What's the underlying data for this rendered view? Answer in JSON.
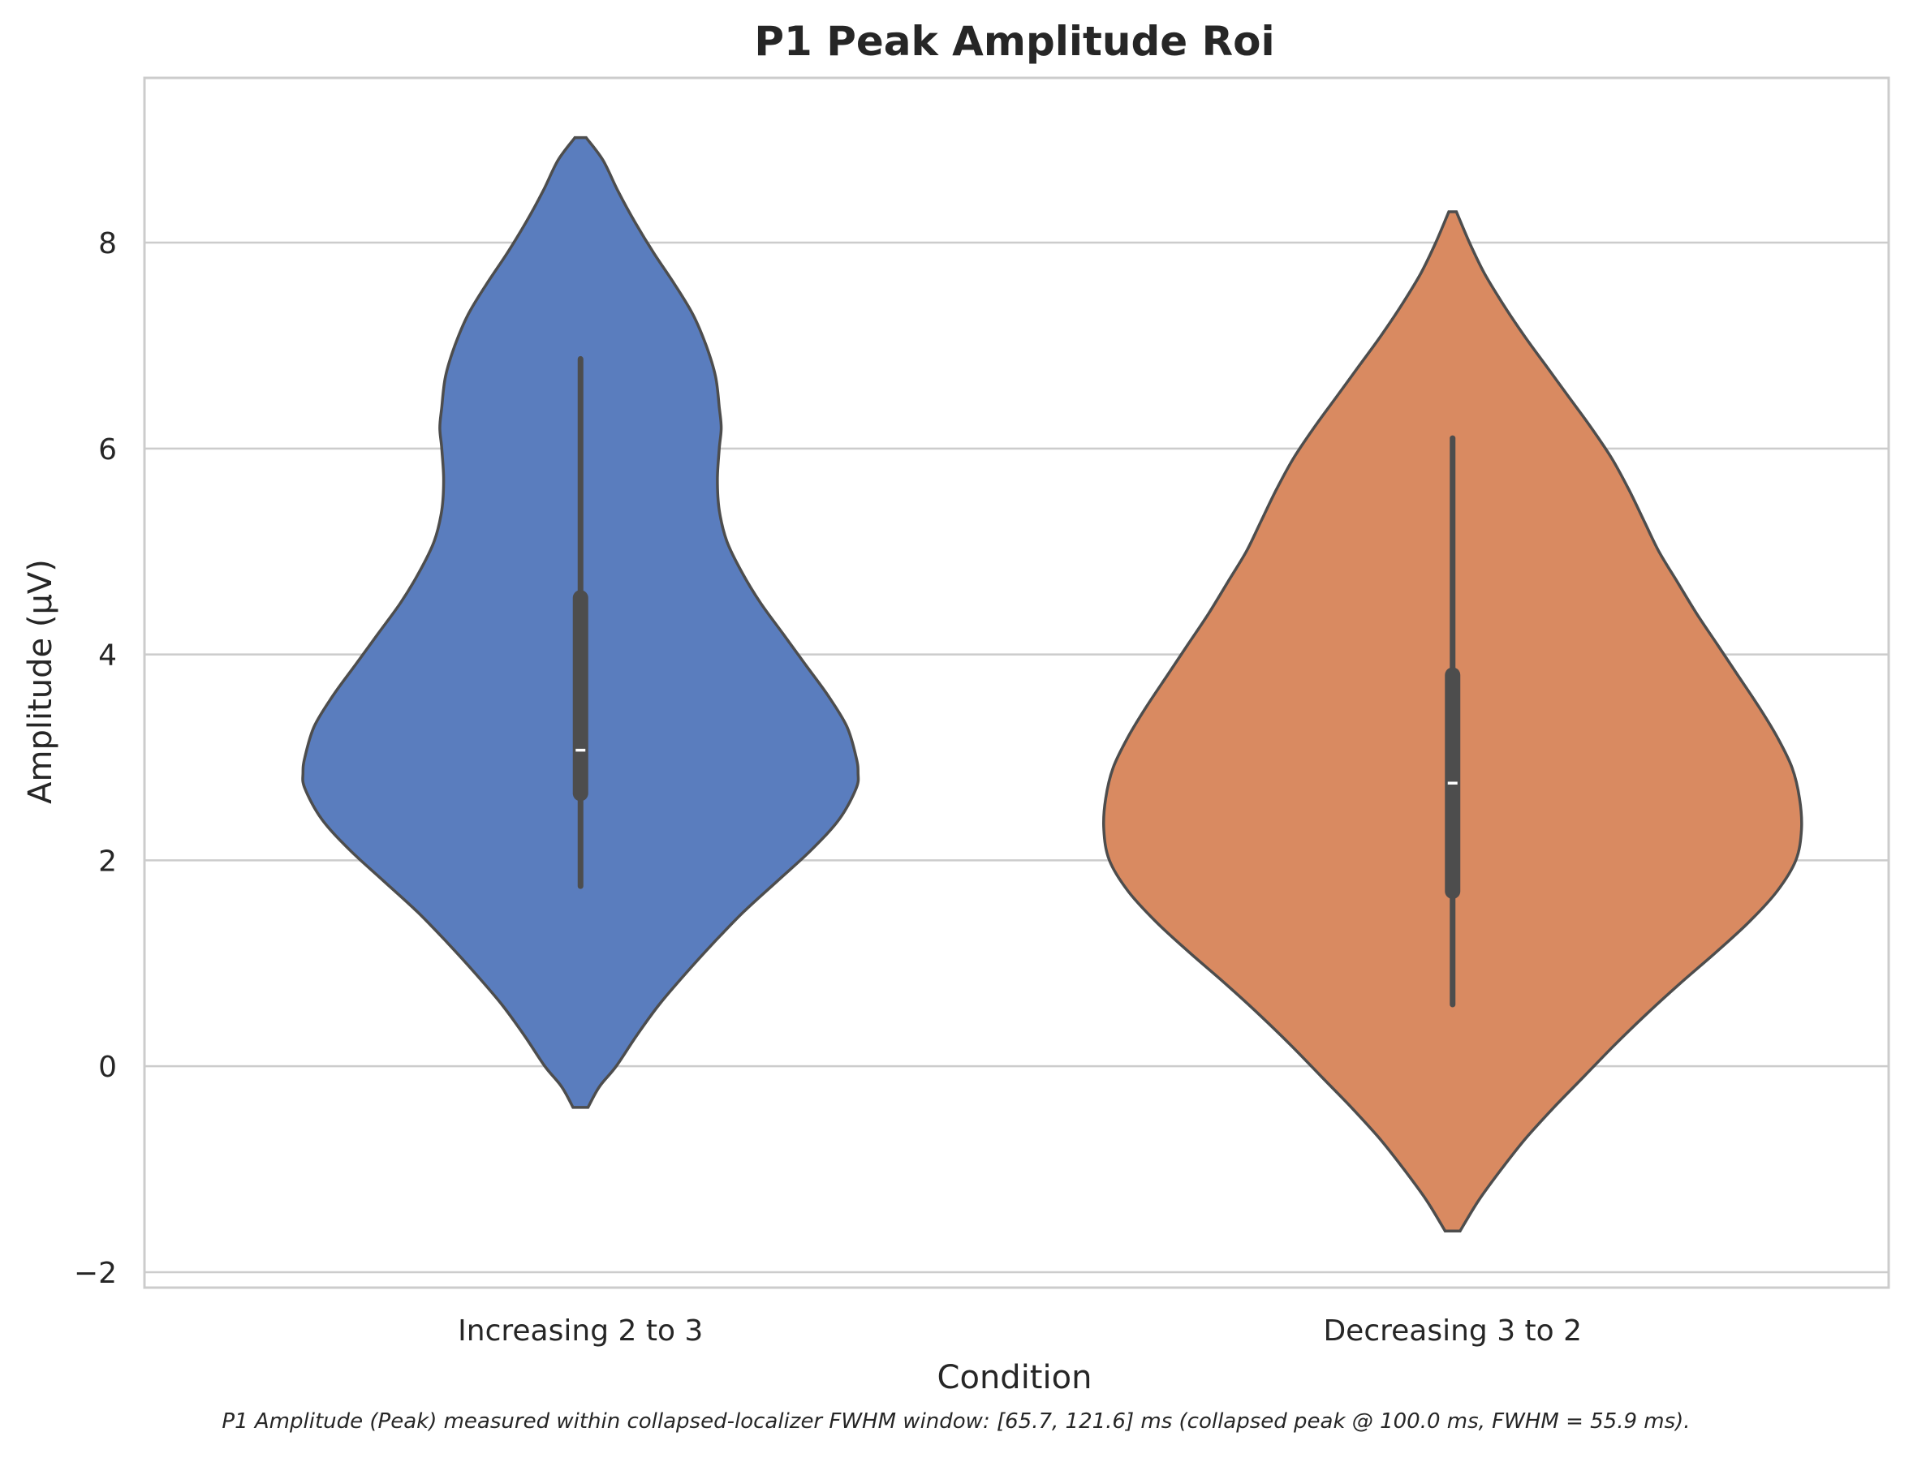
{
  "chart_data": {
    "type": "violin",
    "title": "P1 Peak Amplitude Roi",
    "xlabel": "Condition",
    "ylabel": "Amplitude (µV)",
    "caption": "P1 Amplitude (Peak) measured within collapsed-localizer FWHM window: [65.7, 121.6] ms (collapsed peak @ 100.0 ms, FWHM = 55.9 ms).",
    "ylim": [
      -2.15,
      9.6
    ],
    "yticks": [
      -2,
      0,
      2,
      4,
      6,
      8
    ],
    "ytick_labels": [
      "−2",
      "0",
      "2",
      "4",
      "6",
      "8"
    ],
    "grid": "horizontal",
    "categories": [
      "Increasing 2 to 3",
      "Decreasing 3 to 2"
    ],
    "series": [
      {
        "category": "Increasing 2 to 3",
        "color": "#5a7dbe",
        "median": 3.07,
        "q1": 2.65,
        "q3": 4.55,
        "whisker_low": 1.75,
        "whisker_high": 6.87,
        "range": [
          -0.4,
          9.02
        ],
        "density": [
          [
            9.02,
            0.03
          ],
          [
            8.8,
            0.12
          ],
          [
            8.5,
            0.2
          ],
          [
            8.2,
            0.29
          ],
          [
            7.9,
            0.39
          ],
          [
            7.6,
            0.5
          ],
          [
            7.3,
            0.6
          ],
          [
            7.0,
            0.67
          ],
          [
            6.7,
            0.72
          ],
          [
            6.4,
            0.74
          ],
          [
            6.2,
            0.75
          ],
          [
            6.0,
            0.74
          ],
          [
            5.7,
            0.73
          ],
          [
            5.4,
            0.74
          ],
          [
            5.1,
            0.78
          ],
          [
            4.8,
            0.86
          ],
          [
            4.5,
            0.96
          ],
          [
            4.2,
            1.08
          ],
          [
            3.9,
            1.2
          ],
          [
            3.6,
            1.32
          ],
          [
            3.3,
            1.42
          ],
          [
            3.0,
            1.47
          ],
          [
            2.85,
            1.48
          ],
          [
            2.7,
            1.47
          ],
          [
            2.4,
            1.38
          ],
          [
            2.1,
            1.23
          ],
          [
            1.8,
            1.05
          ],
          [
            1.5,
            0.87
          ],
          [
            1.2,
            0.71
          ],
          [
            0.9,
            0.56
          ],
          [
            0.6,
            0.42
          ],
          [
            0.3,
            0.3
          ],
          [
            0.0,
            0.19
          ],
          [
            -0.2,
            0.1
          ],
          [
            -0.4,
            0.04
          ]
        ]
      },
      {
        "category": "Decreasing 3 to 2",
        "color": "#d98a61",
        "median": 2.75,
        "q1": 1.7,
        "q3": 3.8,
        "whisker_low": 0.6,
        "whisker_high": 6.1,
        "range": [
          -1.6,
          8.3
        ],
        "density": [
          [
            8.3,
            0.02
          ],
          [
            8.0,
            0.09
          ],
          [
            7.7,
            0.17
          ],
          [
            7.4,
            0.27
          ],
          [
            7.1,
            0.38
          ],
          [
            6.8,
            0.5
          ],
          [
            6.5,
            0.62
          ],
          [
            6.2,
            0.74
          ],
          [
            5.9,
            0.85
          ],
          [
            5.6,
            0.94
          ],
          [
            5.3,
            1.02
          ],
          [
            5.0,
            1.1
          ],
          [
            4.7,
            1.2
          ],
          [
            4.4,
            1.3
          ],
          [
            4.1,
            1.41
          ],
          [
            3.8,
            1.52
          ],
          [
            3.5,
            1.63
          ],
          [
            3.2,
            1.73
          ],
          [
            2.9,
            1.81
          ],
          [
            2.6,
            1.85
          ],
          [
            2.3,
            1.86
          ],
          [
            2.0,
            1.83
          ],
          [
            1.7,
            1.73
          ],
          [
            1.4,
            1.58
          ],
          [
            1.1,
            1.4
          ],
          [
            0.8,
            1.21
          ],
          [
            0.5,
            1.03
          ],
          [
            0.2,
            0.86
          ],
          [
            -0.1,
            0.7
          ],
          [
            -0.4,
            0.54
          ],
          [
            -0.7,
            0.39
          ],
          [
            -1.0,
            0.26
          ],
          [
            -1.3,
            0.14
          ],
          [
            -1.6,
            0.04
          ]
        ]
      }
    ]
  }
}
